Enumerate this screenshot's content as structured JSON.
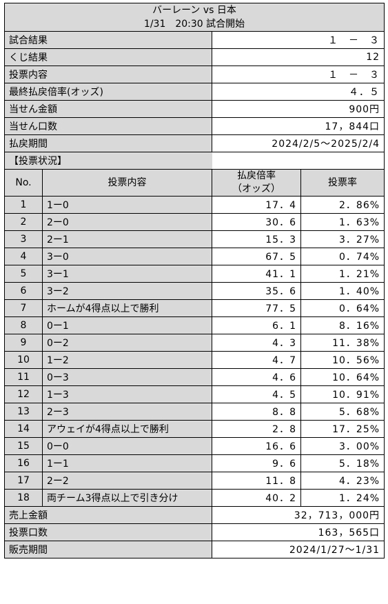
{
  "header": {
    "match": "バーレーン vs 日本",
    "kickoff": "1/31　20:30 試合開始"
  },
  "summary": [
    {
      "label": "試合結果",
      "value": "１　－　３"
    },
    {
      "label": "くじ結果",
      "value": "12"
    },
    {
      "label": "投票内容",
      "value": "１　－　３"
    },
    {
      "label": "最終払戻倍率(オッズ)",
      "value": "４．５"
    },
    {
      "label": "当せん金額",
      "value": "900円"
    },
    {
      "label": "当せん口数",
      "value": "17，844口"
    },
    {
      "label": "払戻期間",
      "value": "2024/2/5～2025/2/4"
    }
  ],
  "status_title": "【投票状況】",
  "table_headers": {
    "no": "No.",
    "content": "投票内容",
    "odds_line1": "払戻倍率",
    "odds_line2": "（オッズ）",
    "rate": "投票率"
  },
  "rows": [
    {
      "no": "1",
      "content": "1ー0",
      "odds": "17．4",
      "rate": "2．86%"
    },
    {
      "no": "2",
      "content": "2ー0",
      "odds": "30．6",
      "rate": "1．63%"
    },
    {
      "no": "3",
      "content": "2ー1",
      "odds": "15．3",
      "rate": "3．27%"
    },
    {
      "no": "4",
      "content": "3ー0",
      "odds": "67．5",
      "rate": "0．74%"
    },
    {
      "no": "5",
      "content": "3ー1",
      "odds": "41．1",
      "rate": "1．21%"
    },
    {
      "no": "6",
      "content": "3ー2",
      "odds": "35．6",
      "rate": "1．40%"
    },
    {
      "no": "7",
      "content": "ホームが4得点以上で勝利",
      "odds": "77．5",
      "rate": "0．64%"
    },
    {
      "no": "8",
      "content": "0ー1",
      "odds": "6．1",
      "rate": "8．16%"
    },
    {
      "no": "9",
      "content": "0ー2",
      "odds": "4．3",
      "rate": "11．38%"
    },
    {
      "no": "10",
      "content": "1ー2",
      "odds": "4．7",
      "rate": "10．56%"
    },
    {
      "no": "11",
      "content": "0ー3",
      "odds": "4．6",
      "rate": "10．64%"
    },
    {
      "no": "12",
      "content": "1ー3",
      "odds": "4．5",
      "rate": "10．91%"
    },
    {
      "no": "13",
      "content": "2ー3",
      "odds": "8．8",
      "rate": "5．68%"
    },
    {
      "no": "14",
      "content": "アウェイが4得点以上で勝利",
      "odds": "2．8",
      "rate": "17．25%"
    },
    {
      "no": "15",
      "content": "0ー0",
      "odds": "16．6",
      "rate": "3．00%"
    },
    {
      "no": "16",
      "content": "1ー1",
      "odds": "9．6",
      "rate": "5．18%"
    },
    {
      "no": "17",
      "content": "2ー2",
      "odds": "11．8",
      "rate": "4．23%"
    },
    {
      "no": "18",
      "content": "両チーム3得点以上で引き分け",
      "odds": "40．2",
      "rate": "1．24%"
    }
  ],
  "footer": [
    {
      "label": "売上金額",
      "value": "32，713，000円"
    },
    {
      "label": "投票口数",
      "value": "163，565口"
    },
    {
      "label": "販売期間",
      "value": "2024/1/27～1/31"
    }
  ],
  "colors": {
    "header_fill": "#d9d9d9",
    "cell_fill": "#ffffff",
    "border": "#000000"
  }
}
